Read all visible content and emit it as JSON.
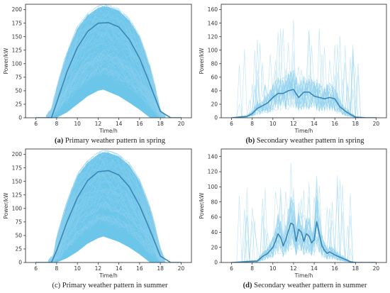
{
  "colors": {
    "band": "#6cc6ea",
    "thin": "#8fd2f0",
    "mean": "#3a86b4",
    "axis": "#222222"
  },
  "chart_data": [
    {
      "id": "a",
      "type": "line",
      "caption_tag": "(a)",
      "caption_text": " Primary weather pattern in spring",
      "xlabel": "Time/h",
      "ylabel": "Power/kW",
      "xlim": [
        5,
        21
      ],
      "ylim": [
        0,
        210
      ],
      "xticks": [
        6,
        8,
        10,
        12,
        14,
        16,
        18,
        20
      ],
      "yticks": [
        0,
        25,
        50,
        75,
        100,
        125,
        150,
        175,
        200
      ],
      "envelope_x": [
        7.0,
        7.5,
        8.0,
        9.0,
        10.0,
        11.0,
        12.0,
        12.5,
        13.0,
        14.0,
        15.0,
        16.0,
        17.0,
        17.5,
        18.0,
        18.5
      ],
      "envelope_upper": [
        0,
        15,
        55,
        120,
        165,
        190,
        203,
        206,
        205,
        198,
        180,
        150,
        95,
        55,
        12,
        0
      ],
      "envelope_lower": [
        0,
        0,
        0,
        10,
        25,
        40,
        50,
        52,
        48,
        40,
        28,
        15,
        0,
        0,
        0,
        0
      ],
      "series": [
        {
          "x": [
            6,
            7.5,
            8,
            9,
            10,
            11,
            12,
            13,
            14,
            15,
            16,
            17,
            18,
            19,
            20
          ],
          "values": [
            0,
            0,
            28,
            85,
            130,
            160,
            175,
            176,
            168,
            145,
            110,
            62,
            12,
            0,
            0
          ]
        }
      ]
    },
    {
      "id": "b",
      "type": "line",
      "caption_tag": "(b)",
      "caption_text": " Secondary weather pattern in spring",
      "xlabel": "Time/h",
      "ylabel": "Power/kW",
      "xlim": [
        5,
        21
      ],
      "ylim": [
        0,
        168
      ],
      "xticks": [
        6,
        8,
        10,
        12,
        14,
        16,
        18,
        20
      ],
      "yticks": [
        0,
        20,
        40,
        60,
        80,
        100,
        120,
        140,
        160
      ],
      "series": [
        {
          "x": [
            6,
            7.5,
            8,
            8.5,
            9,
            9.5,
            10,
            10.5,
            11,
            11.5,
            12,
            12.5,
            13,
            13.5,
            14,
            14.5,
            15,
            15.5,
            16,
            16.5,
            17,
            17.5,
            18,
            19,
            20
          ],
          "values": [
            0,
            2,
            6,
            14,
            18,
            22,
            30,
            36,
            36,
            40,
            42,
            30,
            38,
            38,
            32,
            30,
            28,
            30,
            28,
            16,
            10,
            5,
            1,
            0,
            0
          ]
        }
      ]
    },
    {
      "id": "c",
      "type": "line",
      "caption_tag": "(c)",
      "caption_text": " Primary weather pattern in summer",
      "xlabel": "Time/h",
      "ylabel": "Power/kW",
      "xlim": [
        5,
        21
      ],
      "ylim": [
        0,
        210
      ],
      "xticks": [
        6,
        8,
        10,
        12,
        14,
        16,
        18,
        20
      ],
      "yticks": [
        0,
        25,
        50,
        75,
        100,
        125,
        150,
        175,
        200
      ],
      "envelope_x": [
        7.2,
        7.7,
        8.0,
        9.0,
        10.0,
        11.0,
        12.0,
        12.5,
        13.0,
        14.0,
        15.0,
        16.0,
        17.0,
        17.5,
        18.0,
        18.5
      ],
      "envelope_upper": [
        0,
        12,
        45,
        110,
        160,
        185,
        200,
        204,
        203,
        196,
        180,
        150,
        100,
        65,
        22,
        0
      ],
      "envelope_lower": [
        0,
        0,
        0,
        8,
        20,
        35,
        45,
        48,
        45,
        38,
        28,
        15,
        0,
        0,
        0,
        0
      ],
      "series": [
        {
          "x": [
            6,
            7.5,
            8,
            9,
            10,
            11,
            12,
            13,
            14,
            15,
            16,
            17,
            18,
            19,
            20
          ],
          "values": [
            0,
            0,
            22,
            75,
            120,
            152,
            168,
            170,
            162,
            140,
            105,
            60,
            12,
            0,
            0
          ]
        }
      ]
    },
    {
      "id": "d",
      "type": "line",
      "caption_tag": "(d)",
      "caption_text": " Secondary weather pattern in summer",
      "xlabel": "Time/h",
      "ylabel": "Power/kW",
      "xlim": [
        5,
        21
      ],
      "ylim": [
        0,
        150
      ],
      "xticks": [
        6,
        8,
        10,
        12,
        14,
        16,
        18,
        20
      ],
      "yticks": [
        0,
        20,
        40,
        60,
        80,
        100,
        120,
        140
      ],
      "series": [
        {
          "x": [
            6,
            8.5,
            9,
            9.5,
            10,
            10.25,
            10.5,
            10.75,
            11,
            11.25,
            11.5,
            11.75,
            12,
            12.25,
            12.5,
            12.75,
            13,
            13.25,
            13.5,
            13.75,
            14,
            14.25,
            14.5,
            14.75,
            15,
            15.25,
            15.5,
            16,
            16.5,
            17,
            17.5,
            18,
            20
          ],
          "values": [
            0,
            2,
            8,
            12,
            20,
            28,
            38,
            33,
            22,
            30,
            42,
            52,
            50,
            28,
            44,
            40,
            28,
            38,
            35,
            26,
            30,
            54,
            38,
            22,
            16,
            12,
            14,
            10,
            7,
            4,
            1,
            0,
            0
          ]
        }
      ]
    }
  ]
}
